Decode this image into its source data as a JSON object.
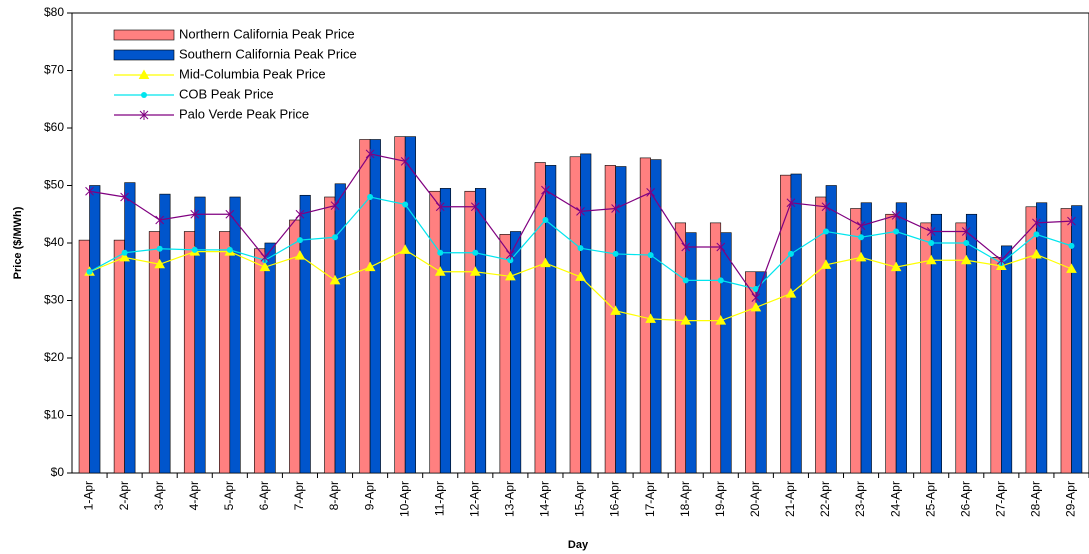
{
  "chart_data": {
    "type": "bar",
    "x_label": "Day",
    "y_label": "Price ($/MWh)",
    "categories": [
      "1-Apr",
      "2-Apr",
      "3-Apr",
      "4-Apr",
      "5-Apr",
      "6-Apr",
      "7-Apr",
      "8-Apr",
      "9-Apr",
      "10-Apr",
      "11-Apr",
      "12-Apr",
      "13-Apr",
      "14-Apr",
      "15-Apr",
      "16-Apr",
      "17-Apr",
      "18-Apr",
      "19-Apr",
      "20-Apr",
      "21-Apr",
      "22-Apr",
      "23-Apr",
      "24-Apr",
      "25-Apr",
      "26-Apr",
      "27-Apr",
      "28-Apr",
      "29-Apr"
    ],
    "series": [
      {
        "name": "Northern California Peak Price",
        "type": "bar",
        "color": "#ff8080",
        "values": [
          40.5,
          40.5,
          42,
          42,
          42,
          39,
          44,
          48,
          58,
          58.5,
          49,
          49,
          41.5,
          54,
          55,
          53.5,
          54.8,
          43.5,
          43.5,
          35,
          51.8,
          48,
          46,
          45,
          43.5,
          43.5,
          37.5,
          46.3,
          46
        ]
      },
      {
        "name": "Southern California Peak Price",
        "type": "bar",
        "color": "#0055cc",
        "values": [
          50,
          50.5,
          48.5,
          48,
          48,
          40,
          48.3,
          50.3,
          58,
          58.5,
          49.5,
          49.5,
          42,
          53.5,
          55.5,
          53.3,
          54.5,
          41.8,
          41.8,
          35,
          52,
          50,
          47,
          47,
          45,
          45,
          39.5,
          47,
          46.5
        ]
      },
      {
        "name": "Mid-Columbia Peak Price",
        "type": "line",
        "marker": "triangle",
        "color": "#ffff00",
        "values": [
          35,
          37.5,
          36.3,
          38.5,
          38.5,
          35.8,
          37.8,
          33.5,
          35.8,
          38.8,
          35,
          35,
          34.2,
          36.5,
          34.1,
          28.2,
          26.8,
          26.5,
          26.5,
          28.8,
          31.2,
          36.2,
          37.5,
          35.8,
          37,
          37,
          36,
          38,
          35.5
        ]
      },
      {
        "name": "COB Peak Price",
        "type": "line",
        "marker": "circle",
        "color": "#00e5ee",
        "values": [
          35,
          38.3,
          39,
          38.8,
          38.8,
          37,
          40.5,
          41,
          48,
          46.7,
          38.3,
          38.3,
          37,
          44,
          39.1,
          38.1,
          37.9,
          33.5,
          33.5,
          32,
          38.1,
          42,
          41,
          42,
          40,
          40,
          36.5,
          41.5,
          39.5
        ]
      },
      {
        "name": "Palo Verde Peak Price",
        "type": "line",
        "marker": "star",
        "color": "#800080",
        "values": [
          49,
          48,
          44,
          45,
          45,
          37.5,
          45,
          46.5,
          55.5,
          54.2,
          46.3,
          46.3,
          38,
          49.2,
          45.5,
          46,
          48.8,
          39.3,
          39.3,
          30.5,
          47,
          46.3,
          43,
          44.8,
          42,
          42,
          37,
          43.5,
          43.8
        ]
      }
    ],
    "ylim": [
      0,
      80
    ],
    "yticks": [
      {
        "value": 0,
        "label": "$0"
      },
      {
        "value": 10,
        "label": "$10"
      },
      {
        "value": 20,
        "label": "$20"
      },
      {
        "value": 30,
        "label": "$30"
      },
      {
        "value": 40,
        "label": "$40"
      },
      {
        "value": 50,
        "label": "$50"
      },
      {
        "value": 60,
        "label": "$60"
      },
      {
        "value": 70,
        "label": "$70"
      },
      {
        "value": 80,
        "label": "$80"
      }
    ],
    "legend": "upper left"
  }
}
